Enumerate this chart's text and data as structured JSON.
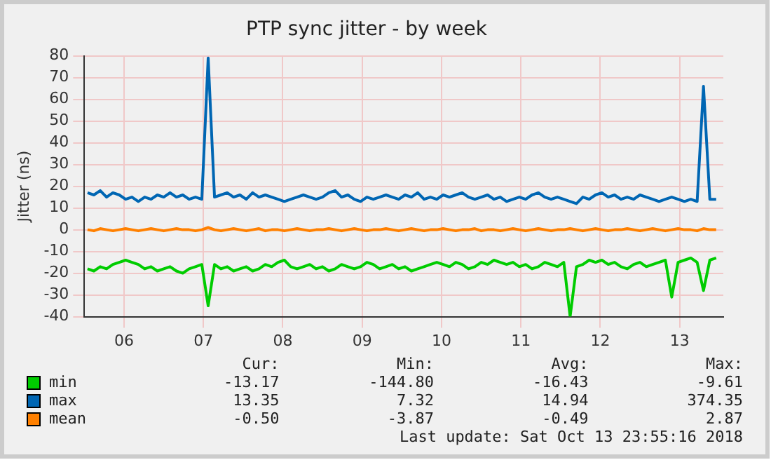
{
  "chart_data": {
    "type": "line",
    "title": "PTP sync jitter - by week",
    "ylabel": "Jitter (ns)",
    "xlim": [
      6.0,
      14.05
    ],
    "xticks": [
      {
        "value": 6.5,
        "label": "06"
      },
      {
        "value": 7.5,
        "label": "07"
      },
      {
        "value": 8.5,
        "label": "08"
      },
      {
        "value": 9.5,
        "label": "09"
      },
      {
        "value": 10.5,
        "label": "10"
      },
      {
        "value": 11.5,
        "label": "11"
      },
      {
        "value": 12.5,
        "label": "12"
      },
      {
        "value": 13.5,
        "label": "13"
      }
    ],
    "ylim": [
      -40,
      80
    ],
    "yticks": [
      -40,
      -30,
      -20,
      -10,
      0,
      10,
      20,
      30,
      40,
      50,
      60,
      70,
      80
    ],
    "x": [
      6.04,
      6.12,
      6.2,
      6.28,
      6.36,
      6.44,
      6.52,
      6.6,
      6.68,
      6.76,
      6.84,
      6.92,
      7,
      7.08,
      7.16,
      7.24,
      7.32,
      7.4,
      7.48,
      7.56,
      7.64,
      7.72,
      7.8,
      7.88,
      7.96,
      8.04,
      8.12,
      8.2,
      8.28,
      8.36,
      8.44,
      8.52,
      8.6,
      8.68,
      8.76,
      8.84,
      8.92,
      9,
      9.08,
      9.16,
      9.24,
      9.32,
      9.4,
      9.48,
      9.56,
      9.64,
      9.72,
      9.8,
      9.88,
      9.96,
      10.04,
      10.12,
      10.2,
      10.28,
      10.36,
      10.44,
      10.52,
      10.6,
      10.68,
      10.76,
      10.84,
      10.92,
      11,
      11.08,
      11.16,
      11.24,
      11.32,
      11.4,
      11.48,
      11.56,
      11.64,
      11.72,
      11.8,
      11.88,
      11.96,
      12.04,
      12.12,
      12.2,
      12.28,
      12.36,
      12.44,
      12.52,
      12.6,
      12.68,
      12.76,
      12.84,
      12.92,
      13,
      13.08,
      13.16,
      13.24,
      13.32,
      13.4,
      13.48,
      13.56,
      13.64,
      13.72,
      13.8,
      13.88,
      13.96
    ],
    "series": [
      {
        "name": "min",
        "color": "#00cc00",
        "values": [
          -18,
          -19,
          -17,
          -18,
          -16,
          -15,
          -14,
          -15,
          -16,
          -18,
          -17,
          -19,
          -18,
          -17,
          -19,
          -20,
          -18,
          -17,
          -16,
          -35,
          -16,
          -18,
          -17,
          -19,
          -18,
          -17,
          -19,
          -18,
          -16,
          -17,
          -15,
          -14,
          -17,
          -18,
          -17,
          -16,
          -18,
          -17,
          -19,
          -18,
          -16,
          -17,
          -18,
          -17,
          -15,
          -16,
          -18,
          -17,
          -16,
          -18,
          -17,
          -19,
          -18,
          -17,
          -16,
          -15,
          -16,
          -17,
          -15,
          -16,
          -18,
          -17,
          -15,
          -16,
          -14,
          -15,
          -16,
          -15,
          -17,
          -16,
          -18,
          -17,
          -15,
          -16,
          -17,
          -15,
          -40,
          -17,
          -16,
          -14,
          -15,
          -14,
          -16,
          -15,
          -17,
          -18,
          -16,
          -15,
          -17,
          -16,
          -15,
          -14,
          -31,
          -15,
          -14,
          -13,
          -15,
          -28,
          -14,
          -13
        ]
      },
      {
        "name": "max",
        "color": "#0066b3",
        "values": [
          17,
          16,
          18,
          15,
          17,
          16,
          14,
          15,
          13,
          15,
          14,
          16,
          15,
          17,
          15,
          16,
          14,
          15,
          14,
          79,
          15,
          16,
          17,
          15,
          16,
          14,
          17,
          15,
          16,
          15,
          14,
          13,
          14,
          15,
          16,
          15,
          14,
          15,
          17,
          18,
          15,
          16,
          14,
          13,
          15,
          14,
          15,
          16,
          15,
          14,
          16,
          15,
          17,
          14,
          15,
          14,
          16,
          15,
          16,
          17,
          15,
          14,
          15,
          16,
          14,
          15,
          13,
          14,
          15,
          14,
          16,
          17,
          15,
          14,
          15,
          14,
          13,
          12,
          15,
          14,
          16,
          17,
          15,
          16,
          14,
          15,
          14,
          16,
          15,
          14,
          13,
          14,
          15,
          14,
          13,
          14,
          13,
          66,
          14,
          14
        ]
      },
      {
        "name": "mean",
        "color": "#ff8000",
        "values": [
          0,
          -0.5,
          0.5,
          0,
          -0.5,
          0,
          0.5,
          0,
          -0.5,
          0,
          0.5,
          0,
          -0.5,
          0,
          0.5,
          0,
          0,
          -0.5,
          0,
          1,
          0,
          -0.5,
          0,
          0.5,
          0,
          -0.5,
          0,
          0.5,
          -0.5,
          0,
          0,
          -0.5,
          0,
          0.5,
          0,
          -0.5,
          0,
          0,
          0.5,
          0,
          -0.5,
          0,
          0.5,
          0,
          -0.5,
          0,
          0,
          0.5,
          0,
          -0.5,
          0,
          0.5,
          0,
          -0.5,
          0,
          0,
          0.5,
          0,
          -0.5,
          0,
          0,
          0.5,
          -0.5,
          0,
          0,
          -0.5,
          0,
          0.5,
          0,
          -0.5,
          0,
          0.5,
          0,
          -0.5,
          0,
          0,
          0.5,
          0,
          -0.5,
          0,
          0.5,
          0,
          -0.5,
          0,
          0,
          0.5,
          0,
          -0.5,
          0,
          0.5,
          0,
          -0.5,
          0,
          0.5,
          0,
          0,
          -0.5,
          0.5,
          0,
          0
        ]
      }
    ],
    "grid": true,
    "legend": "bottom",
    "marker": "none",
    "line_style": "solid",
    "annotations": [
      "Cur:",
      "Min:",
      "Avg:",
      "Max:",
      "-13.17",
      "-144.80",
      "-16.43",
      "-9.61",
      "13.35",
      "7.32",
      "14.94",
      "374.35",
      "-0.50",
      "-3.87",
      "-0.49",
      "2.87",
      "Last update: Sat Oct 13 23:55:16 2018"
    ]
  }
}
